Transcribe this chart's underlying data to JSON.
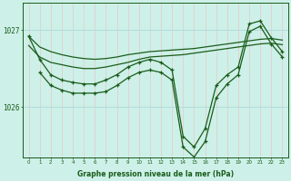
{
  "xlabel": "Graphe pression niveau de la mer (hPa)",
  "bg_color": "#cdf0e8",
  "line_color": "#1a5c1a",
  "grid_color_v": "#e8c8c8",
  "grid_color_h": "#b0ddd8",
  "yticks": [
    1026,
    1027
  ],
  "xticks": [
    0,
    1,
    2,
    3,
    4,
    5,
    6,
    7,
    8,
    9,
    10,
    11,
    12,
    13,
    14,
    15,
    16,
    17,
    18,
    19,
    20,
    21,
    22,
    23
  ],
  "ymin": 1025.35,
  "ymax": 1027.35,
  "series1": {
    "x": [
      0,
      1,
      2,
      3,
      4,
      5,
      6,
      7,
      8,
      9,
      10,
      11,
      12,
      13,
      14,
      15,
      16,
      17,
      18,
      19,
      20,
      21,
      22,
      23
    ],
    "y": [
      1026.92,
      1026.78,
      1026.72,
      1026.68,
      1026.65,
      1026.63,
      1026.62,
      1026.63,
      1026.65,
      1026.68,
      1026.7,
      1026.72,
      1026.73,
      1026.74,
      1026.75,
      1026.76,
      1026.78,
      1026.8,
      1026.82,
      1026.84,
      1026.86,
      1026.88,
      1026.89,
      1026.87
    ]
  },
  "series2": {
    "x": [
      0,
      1,
      2,
      3,
      4,
      5,
      6,
      7,
      8,
      9,
      10,
      11,
      12,
      13,
      14,
      15,
      16,
      17,
      18,
      19,
      20,
      21,
      22,
      23
    ],
    "y": [
      1026.8,
      1026.65,
      1026.58,
      1026.55,
      1026.52,
      1026.5,
      1026.5,
      1026.52,
      1026.55,
      1026.58,
      1026.62,
      1026.65,
      1026.66,
      1026.67,
      1026.68,
      1026.7,
      1026.72,
      1026.74,
      1026.76,
      1026.78,
      1026.8,
      1026.82,
      1026.83,
      1026.81
    ]
  },
  "series3": {
    "x": [
      0,
      1,
      2,
      3,
      4,
      5,
      6,
      7,
      8,
      9,
      10,
      11,
      12,
      13,
      14,
      15,
      16,
      17,
      18,
      19,
      20,
      21,
      22,
      23
    ],
    "y": [
      1026.92,
      1026.62,
      1026.42,
      1026.35,
      1026.32,
      1026.3,
      1026.3,
      1026.35,
      1026.42,
      1026.52,
      1026.58,
      1026.62,
      1026.58,
      1026.48,
      1025.62,
      1025.48,
      1025.72,
      1026.28,
      1026.42,
      1026.52,
      1027.08,
      1027.12,
      1026.9,
      1026.72
    ]
  },
  "series4": {
    "x": [
      1,
      2,
      3,
      4,
      5,
      6,
      7,
      8,
      9,
      10,
      11,
      12,
      13,
      14,
      15,
      16,
      17,
      18,
      19,
      20,
      21,
      22,
      23
    ],
    "y": [
      1026.45,
      1026.28,
      1026.22,
      1026.18,
      1026.18,
      1026.18,
      1026.2,
      1026.28,
      1026.38,
      1026.45,
      1026.48,
      1026.45,
      1026.35,
      1025.48,
      1025.35,
      1025.55,
      1026.12,
      1026.3,
      1026.42,
      1026.98,
      1027.05,
      1026.82,
      1026.65
    ]
  }
}
